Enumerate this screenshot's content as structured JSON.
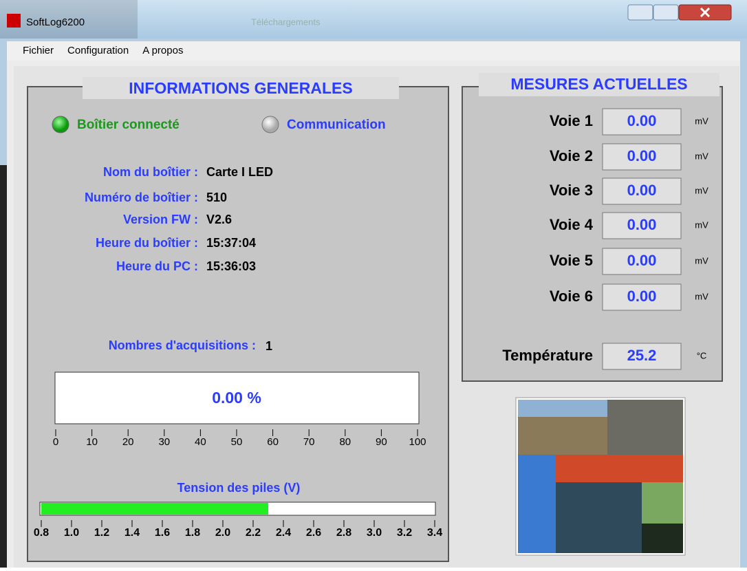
{
  "window": {
    "title": "SoftLog6200",
    "taskbar_item": "Téléchargements"
  },
  "menu": [
    "Fichier",
    "Configuration",
    "A propos"
  ],
  "general": {
    "title": "INFORMATIONS GENERALES",
    "status": [
      "Boîtier connecté",
      "Communication"
    ],
    "fields": [
      {
        "label": "Nom du boîtier :",
        "value": "Carte I LED"
      },
      {
        "label": "Numéro de boîtier :",
        "value": "510"
      },
      {
        "label": "Version FW :",
        "value": "V2.6"
      },
      {
        "label": "Heure du boîtier :",
        "value": "15:37:04"
      },
      {
        "label": "Heure du PC :",
        "value": "15:36:03"
      }
    ],
    "acquisitions": {
      "label": "Nombres d'acquisitions :",
      "value": 1
    },
    "progress": {
      "value": 0,
      "label": "0.00 %",
      "lim": [
        0,
        100
      ],
      "ticks": [
        0,
        10,
        20,
        30,
        40,
        50,
        60,
        70,
        80,
        90,
        100
      ]
    },
    "battery": {
      "title": "Tension des piles (V)",
      "value": 2.3,
      "lim": [
        0.8,
        3.4
      ],
      "ticks": [
        0.8,
        {
          "value": 1,
          "label": "1.0"
        },
        1.2,
        1.4,
        1.6,
        1.8,
        {
          "value": 2,
          "label": "2.0"
        },
        2.2,
        2.4,
        2.6,
        2.8,
        {
          "value": 3,
          "label": "3.0"
        },
        3.2,
        3.4
      ]
    }
  },
  "measures": {
    "title": "MESURES ACTUELLES",
    "channels": [
      {
        "label": "Voie 1",
        "value": "0.00",
        "unit": "mV"
      },
      {
        "label": "Voie 2",
        "value": "0.00",
        "unit": "mV"
      },
      {
        "label": "Voie 3",
        "value": "0.00",
        "unit": "mV"
      },
      {
        "label": "Voie 4",
        "value": "0.00",
        "unit": "mV"
      },
      {
        "label": "Voie 5",
        "value": "0.00",
        "unit": "mV"
      },
      {
        "label": "Voie 6",
        "value": "0.00",
        "unit": "mV"
      }
    ],
    "temperature": {
      "label": "Température",
      "value": "25.2",
      "unit": "°C"
    }
  }
}
